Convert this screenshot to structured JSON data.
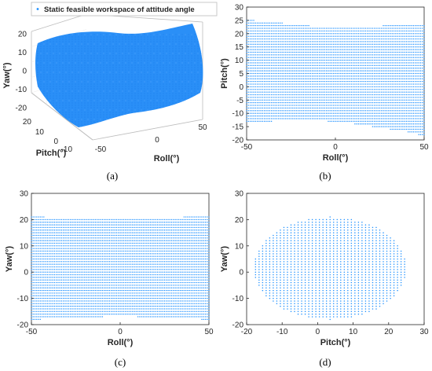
{
  "legend": {
    "label": "Static feasible workspace of attitude angle"
  },
  "colors": {
    "points": "#1e90ff",
    "axis": "#262626",
    "grid": "#e6e6e6"
  },
  "chart_data": [
    {
      "panel": "a",
      "type": "scatter",
      "caption": "(a)",
      "xlabel": "Roll(°)",
      "ylabel": "Pitch(°)",
      "zlabel": "Yaw(°)",
      "xticks": [
        "-50",
        "0",
        "50"
      ],
      "yticks": [
        "-10",
        "0",
        "10",
        "20"
      ],
      "zticks": [
        "-20",
        "-10",
        "0",
        "10",
        "20"
      ],
      "xlim": [
        -50,
        50
      ],
      "ylim": [
        -18,
        25
      ],
      "zlim": [
        -20,
        22
      ],
      "view": "3d"
    },
    {
      "panel": "b",
      "type": "scatter",
      "caption": "(b)",
      "xlabel": "Roll(°)",
      "ylabel": "Pitch(°)",
      "xlim": [
        -50,
        50
      ],
      "ylim": [
        -20,
        30
      ],
      "xticks": [
        "-50",
        "0",
        "50"
      ],
      "yticks": [
        "-20",
        "-15",
        "-10",
        "-5",
        "0",
        "5",
        "10",
        "15",
        "20",
        "25",
        "30"
      ],
      "top_boundary": [
        [
          -50,
          25
        ],
        [
          -46,
          25
        ],
        [
          -45,
          24
        ],
        [
          -30,
          24
        ],
        [
          -29,
          23
        ],
        [
          -15,
          23
        ],
        [
          -14,
          22
        ],
        [
          26,
          22
        ],
        [
          27,
          23
        ],
        [
          50,
          23
        ]
      ],
      "bottom_boundary": [
        [
          -50,
          -13
        ],
        [
          -36,
          -13
        ],
        [
          -35,
          -12
        ],
        [
          -5,
          -12
        ],
        [
          -4,
          -13
        ],
        [
          10,
          -13
        ],
        [
          11,
          -14
        ],
        [
          20,
          -14
        ],
        [
          21,
          -15
        ],
        [
          30,
          -15
        ],
        [
          31,
          -16
        ],
        [
          40,
          -16
        ],
        [
          41,
          -17
        ],
        [
          46,
          -17
        ],
        [
          47,
          -18
        ],
        [
          50,
          -18
        ]
      ]
    },
    {
      "panel": "c",
      "type": "scatter",
      "caption": "(c)",
      "xlabel": "Roll(°)",
      "ylabel": "Yaw(°)",
      "xlim": [
        -50,
        50
      ],
      "ylim": [
        -20,
        30
      ],
      "xticks": [
        "-50",
        "0",
        "50"
      ],
      "yticks": [
        "-20",
        "-10",
        "0",
        "10",
        "20",
        "30"
      ],
      "top_boundary": [
        [
          -50,
          21
        ],
        [
          -43,
          21
        ],
        [
          -42,
          20
        ],
        [
          35,
          20
        ],
        [
          36,
          21
        ],
        [
          50,
          21
        ]
      ],
      "bottom_boundary": [
        [
          -50,
          -18
        ],
        [
          -45,
          -18
        ],
        [
          -44,
          -17
        ],
        [
          -10,
          -17
        ],
        [
          -9,
          -16
        ],
        [
          9,
          -16
        ],
        [
          10,
          -17
        ],
        [
          45,
          -17
        ],
        [
          46,
          -18
        ],
        [
          50,
          -18
        ]
      ]
    },
    {
      "panel": "d",
      "type": "scatter",
      "caption": "(d)",
      "xlabel": "Pitch(°)",
      "ylabel": "Yaw(°)",
      "xlim": [
        -20,
        30
      ],
      "ylim": [
        -20,
        30
      ],
      "xticks": [
        "-20",
        "-10",
        "0",
        "10",
        "20",
        "30"
      ],
      "yticks": [
        "-20",
        "-10",
        "0",
        "10",
        "20",
        "30"
      ],
      "region": {
        "center": [
          3.5,
          1.5
        ],
        "radius_x": 21.5,
        "radius_y": 19.5,
        "top_cut": 21,
        "bottom_cut": -18
      }
    }
  ]
}
